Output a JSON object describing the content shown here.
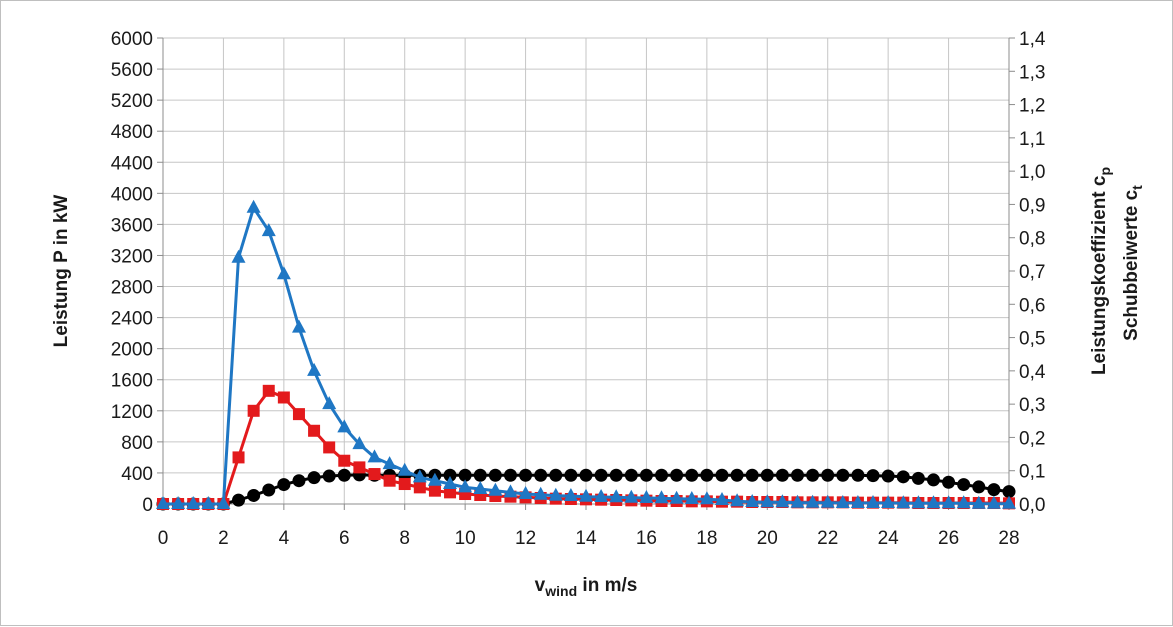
{
  "chart_data": {
    "type": "line",
    "title": "",
    "xlabel": {
      "main": "v",
      "sub": "wind",
      "rest": " in m/s"
    },
    "ylabel_left": "Leistung P in kW",
    "ylabel_right": [
      {
        "main": "Leistungskoeffizient  c",
        "sub": "p"
      },
      {
        "main": "Schubbeiwerte  c",
        "sub": "t"
      }
    ],
    "xlim": [
      0,
      28
    ],
    "ylim_left": [
      0,
      6000
    ],
    "ylim_right": [
      0,
      1.4
    ],
    "x_ticks": [
      0,
      2,
      4,
      6,
      8,
      10,
      12,
      14,
      16,
      18,
      20,
      22,
      24,
      26,
      28
    ],
    "x_tick_labels": [
      "0",
      "2",
      "4",
      "6",
      "8",
      "10",
      "12",
      "14",
      "16",
      "18",
      "20",
      "22",
      "24",
      "26",
      "28"
    ],
    "y_left_ticks": [
      0,
      400,
      800,
      1200,
      1600,
      2000,
      2400,
      2800,
      3200,
      3600,
      4000,
      4400,
      4800,
      5200,
      5600,
      6000
    ],
    "y_left_tick_labels": [
      "0",
      "400",
      "800",
      "1200",
      "1600",
      "2000",
      "2400",
      "2800",
      "3200",
      "3600",
      "4000",
      "4400",
      "4800",
      "5200",
      "5600",
      "6000"
    ],
    "y_right_ticks": [
      0,
      0.1,
      0.2,
      0.3,
      0.4,
      0.5,
      0.6,
      0.7,
      0.8,
      0.9,
      1.0,
      1.1,
      1.2,
      1.3,
      1.4
    ],
    "y_right_tick_labels": [
      "0,0",
      "0,1",
      "0,2",
      "0,3",
      "0,4",
      "0,5",
      "0,6",
      "0,7",
      "0,8",
      "0,9",
      "1,0",
      "1,1",
      "1,2",
      "1,3",
      "1,4"
    ],
    "grid": true,
    "legend": "none",
    "series": [
      {
        "axis": "left",
        "color": "#000000",
        "marker": "circle",
        "x": [
          0,
          0.5,
          1,
          1.5,
          2,
          2.5,
          3,
          3.5,
          4,
          4.5,
          5,
          5.5,
          6,
          6.5,
          7,
          7.5,
          8,
          8.5,
          9,
          9.5,
          10,
          10.5,
          11,
          11.5,
          12,
          12.5,
          13,
          13.5,
          14,
          14.5,
          15,
          15.5,
          16,
          16.5,
          17,
          17.5,
          18,
          18.5,
          19,
          19.5,
          20,
          20.5,
          21,
          21.5,
          22,
          22.5,
          23,
          23.5,
          24,
          24.5,
          25,
          25.5,
          26,
          26.5,
          27,
          27.5,
          28
        ],
        "y": [
          0,
          0,
          0,
          0,
          0,
          50,
          110,
          180,
          250,
          300,
          340,
          360,
          370,
          375,
          370,
          370,
          370,
          370,
          370,
          370,
          370,
          370,
          370,
          370,
          370,
          370,
          370,
          370,
          370,
          370,
          370,
          370,
          370,
          370,
          370,
          370,
          370,
          370,
          370,
          370,
          370,
          370,
          370,
          370,
          370,
          370,
          370,
          365,
          360,
          350,
          330,
          310,
          280,
          250,
          220,
          185,
          160
        ]
      },
      {
        "axis": "right",
        "color": "#e31a1c",
        "marker": "square",
        "x": [
          0,
          0.5,
          1,
          1.5,
          2,
          2.5,
          3,
          3.5,
          4,
          4.5,
          5,
          5.5,
          6,
          6.5,
          7,
          7.5,
          8,
          8.5,
          9,
          9.5,
          10,
          10.5,
          11,
          11.5,
          12,
          12.5,
          13,
          13.5,
          14,
          14.5,
          15,
          15.5,
          16,
          16.5,
          17,
          17.5,
          18,
          18.5,
          19,
          19.5,
          20,
          20.5,
          21,
          21.5,
          22,
          22.5,
          23,
          23.5,
          24,
          24.5,
          25,
          25.5,
          26,
          26.5,
          27,
          27.5,
          28
        ],
        "y": [
          0,
          0,
          0,
          0,
          0,
          0.14,
          0.28,
          0.34,
          0.32,
          0.27,
          0.22,
          0.17,
          0.13,
          0.11,
          0.09,
          0.07,
          0.06,
          0.05,
          0.04,
          0.035,
          0.03,
          0.027,
          0.024,
          0.022,
          0.02,
          0.018,
          0.016,
          0.015,
          0.014,
          0.013,
          0.012,
          0.011,
          0.01,
          0.009,
          0.009,
          0.008,
          0.008,
          0.007,
          0.007,
          0.006,
          0.006,
          0.006,
          0.005,
          0.005,
          0.005,
          0.005,
          0.004,
          0.004,
          0.004,
          0.004,
          0.003,
          0.003,
          0.003,
          0.003,
          0.003,
          0.003,
          0.002
        ]
      },
      {
        "axis": "right",
        "color": "#1f77c4",
        "marker": "triangle",
        "x": [
          0,
          0.5,
          1,
          1.5,
          2,
          2.5,
          3,
          3.5,
          4,
          4.5,
          5,
          5.5,
          6,
          6.5,
          7,
          7.5,
          8,
          8.5,
          9,
          9.5,
          10,
          10.5,
          11,
          11.5,
          12,
          12.5,
          13,
          13.5,
          14,
          14.5,
          15,
          15.5,
          16,
          16.5,
          17,
          17.5,
          18,
          18.5,
          19,
          19.5,
          20,
          20.5,
          21,
          21.5,
          22,
          22.5,
          23,
          23.5,
          24,
          24.5,
          25,
          25.5,
          26,
          26.5,
          27,
          27.5,
          28
        ],
        "y": [
          0,
          0,
          0,
          0,
          0,
          0.74,
          0.89,
          0.82,
          0.69,
          0.53,
          0.4,
          0.3,
          0.23,
          0.18,
          0.14,
          0.12,
          0.1,
          0.08,
          0.07,
          0.06,
          0.05,
          0.045,
          0.04,
          0.035,
          0.03,
          0.028,
          0.025,
          0.024,
          0.022,
          0.021,
          0.02,
          0.019,
          0.018,
          0.017,
          0.016,
          0.015,
          0.014,
          0.012,
          0.008,
          0.006,
          0.005,
          0.005,
          0.004,
          0.004,
          0.004,
          0.003,
          0.003,
          0.003,
          0.003,
          0.002,
          0.002,
          0.002,
          0.002,
          0.002,
          0.001,
          0.001,
          0.001
        ]
      }
    ]
  }
}
